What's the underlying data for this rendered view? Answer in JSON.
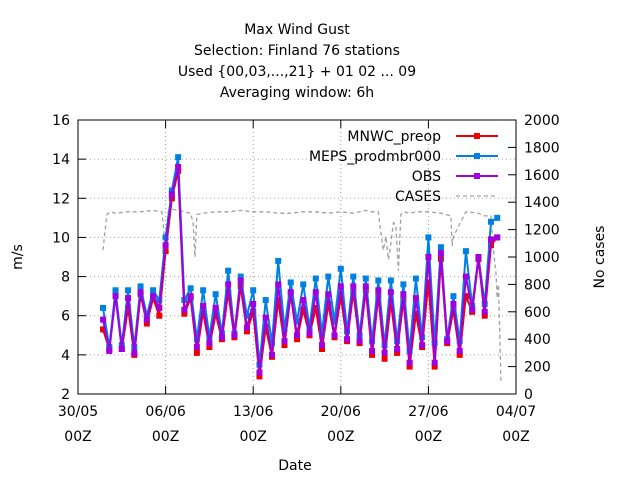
{
  "chart_data": {
    "type": "line",
    "title_lines": [
      "Max Wind Gust",
      "Selection: Finland     76 stations",
      "Used {00,03,...,21} + 01 02 ... 09",
      "Averaging window:  6h"
    ],
    "xlabel": "Date",
    "ylabel": "m/s",
    "y2label": "No cases",
    "xlim": [
      0,
      35
    ],
    "ylim": [
      2,
      16
    ],
    "y2lim": [
      0,
      2000
    ],
    "x_ticks": [
      {
        "x": 0,
        "date": "30/05",
        "hour": "00Z"
      },
      {
        "x": 7,
        "date": "06/06",
        "hour": "00Z"
      },
      {
        "x": 14,
        "date": "13/06",
        "hour": "00Z"
      },
      {
        "x": 21,
        "date": "20/06",
        "hour": "00Z"
      },
      {
        "x": 28,
        "date": "27/06",
        "hour": "00Z"
      },
      {
        "x": 35,
        "date": "04/07",
        "hour": "00Z"
      }
    ],
    "y_ticks": [
      2,
      4,
      6,
      8,
      10,
      12,
      14,
      16
    ],
    "y2_ticks": [
      0,
      200,
      400,
      600,
      800,
      1000,
      1200,
      1400,
      1600,
      1800,
      2000
    ],
    "grid": true,
    "legend_position": "top-right",
    "x_unit": "days since 30/05 00Z",
    "series": [
      {
        "name": "MNWC_preop",
        "color": "#ee0000",
        "marker": "square",
        "axis": "y",
        "x": [
          2.0,
          2.5,
          3.0,
          3.5,
          4.0,
          4.5,
          5.0,
          5.5,
          6.0,
          6.5,
          7.0,
          7.5,
          8.0,
          8.5,
          9.0,
          9.5,
          10.0,
          10.5,
          11.0,
          11.5,
          12.0,
          12.5,
          13.0,
          13.5,
          14.0,
          14.5,
          15.0,
          15.5,
          16.0,
          16.5,
          17.0,
          17.5,
          18.0,
          18.5,
          19.0,
          19.5,
          20.0,
          20.5,
          21.0,
          21.5,
          22.0,
          22.5,
          23.0,
          23.5,
          24.0,
          24.5,
          25.0,
          25.5,
          26.0,
          26.5,
          27.0,
          27.5,
          28.0,
          28.5,
          29.0,
          29.5,
          30.0,
          30.5,
          31.0,
          31.5,
          32.0,
          32.5,
          33.0,
          33.5
        ],
        "values": [
          5.3,
          4.3,
          7.2,
          4.3,
          6.4,
          4.0,
          7.1,
          5.6,
          6.9,
          6.0,
          9.3,
          12.0,
          13.4,
          6.1,
          6.9,
          4.1,
          6.2,
          4.4,
          6.1,
          4.8,
          7.2,
          4.9,
          7.5,
          5.2,
          6.2,
          2.9,
          5.4,
          3.9,
          6.8,
          4.5,
          7.1,
          4.8,
          6.3,
          5.0,
          6.4,
          4.3,
          6.6,
          4.9,
          7.0,
          4.7,
          7.2,
          4.6,
          7.3,
          4.0,
          7.0,
          3.8,
          6.7,
          4.1,
          6.8,
          3.4,
          6.1,
          4.4,
          7.7,
          3.4,
          8.9,
          4.6,
          6.3,
          4.0,
          7.0,
          6.2,
          8.9,
          6.0,
          9.6,
          10.0
        ]
      },
      {
        "name": "MEPS_prodmbr000",
        "color": "#0080e0",
        "marker": "square",
        "axis": "y",
        "x": [
          2.0,
          2.5,
          3.0,
          3.5,
          4.0,
          4.5,
          5.0,
          5.5,
          6.0,
          6.5,
          7.0,
          7.5,
          8.0,
          8.5,
          9.0,
          9.5,
          10.0,
          10.5,
          11.0,
          11.5,
          12.0,
          12.5,
          13.0,
          13.5,
          14.0,
          14.5,
          15.0,
          15.5,
          16.0,
          16.5,
          17.0,
          17.5,
          18.0,
          18.5,
          19.0,
          19.5,
          20.0,
          20.5,
          21.0,
          21.5,
          22.0,
          22.5,
          23.0,
          23.5,
          24.0,
          24.5,
          25.0,
          25.5,
          26.0,
          26.5,
          27.0,
          27.5,
          28.0,
          28.5,
          29.0,
          29.5,
          30.0,
          30.5,
          31.0,
          31.5,
          32.0,
          32.5,
          33.0,
          33.5
        ],
        "values": [
          6.4,
          4.4,
          7.3,
          4.5,
          7.3,
          4.4,
          7.5,
          6.0,
          7.3,
          6.8,
          10.0,
          12.4,
          14.1,
          6.8,
          7.4,
          4.8,
          7.3,
          4.9,
          7.1,
          5.1,
          8.3,
          5.1,
          8.0,
          6.0,
          7.3,
          3.5,
          6.8,
          4.6,
          8.8,
          5.3,
          7.7,
          5.7,
          7.6,
          5.4,
          7.9,
          5.1,
          8.0,
          5.7,
          8.4,
          5.2,
          8.0,
          5.0,
          7.9,
          4.7,
          7.8,
          4.5,
          7.8,
          4.7,
          7.6,
          4.2,
          7.9,
          4.9,
          10.0,
          4.6,
          9.5,
          4.8,
          7.0,
          4.7,
          9.3,
          6.5,
          9.0,
          6.6,
          10.8,
          11.0
        ]
      },
      {
        "name": "OBS",
        "color": "#a000e0",
        "marker": "square",
        "axis": "y",
        "x": [
          2.0,
          2.5,
          3.0,
          3.5,
          4.0,
          4.5,
          5.0,
          5.5,
          6.0,
          6.5,
          7.0,
          7.5,
          8.0,
          8.5,
          9.0,
          9.5,
          10.0,
          10.5,
          11.0,
          11.5,
          12.0,
          12.5,
          13.0,
          13.5,
          14.0,
          14.5,
          15.0,
          15.5,
          16.0,
          16.5,
          17.0,
          17.5,
          18.0,
          18.5,
          19.0,
          19.5,
          20.0,
          20.5,
          21.0,
          21.5,
          22.0,
          22.5,
          23.0,
          23.5,
          24.0,
          24.5,
          25.0,
          25.5,
          26.0,
          26.5,
          27.0,
          27.5,
          28.0,
          28.5,
          29.0,
          29.5,
          30.0,
          30.5,
          31.0,
          31.5,
          32.0,
          32.5,
          33.0,
          33.5
        ],
        "values": [
          5.8,
          4.2,
          7.0,
          4.3,
          6.9,
          4.1,
          7.2,
          5.8,
          7.0,
          6.4,
          9.6,
          12.2,
          13.6,
          6.3,
          7.0,
          4.4,
          6.5,
          4.6,
          6.4,
          4.9,
          7.6,
          5.0,
          7.8,
          5.4,
          6.6,
          3.1,
          5.9,
          4.0,
          7.6,
          4.7,
          7.2,
          5.0,
          6.8,
          5.1,
          7.2,
          4.5,
          7.1,
          5.0,
          7.5,
          4.8,
          7.5,
          4.7,
          7.5,
          4.2,
          7.3,
          4.1,
          7.2,
          4.3,
          7.1,
          3.6,
          6.9,
          4.5,
          9.0,
          3.6,
          9.2,
          4.7,
          6.6,
          4.2,
          8.0,
          6.3,
          9.0,
          6.2,
          9.9,
          10.0
        ]
      },
      {
        "name": "CASES",
        "color": "#a0a0a0",
        "marker": "none",
        "dash": true,
        "axis": "y2",
        "x": [
          2.0,
          2.3,
          2.6,
          3.0,
          4.0,
          5.0,
          6.0,
          6.7,
          6.8,
          6.9,
          7.0,
          7.2,
          7.5,
          8.0,
          8.5,
          9.0,
          9.2,
          9.35,
          9.5,
          10.0,
          11.0,
          12.0,
          13.0,
          14.0,
          15.0,
          16.0,
          17.0,
          18.0,
          19.0,
          20.0,
          21.0,
          22.0,
          23.0,
          23.5,
          24.0,
          24.2,
          24.4,
          24.6,
          24.8,
          25.0,
          25.2,
          25.4,
          25.6,
          25.8,
          26.0,
          26.5,
          27.0,
          28.0,
          29.0,
          29.8,
          29.9,
          30.0,
          31.0,
          32.0,
          32.5,
          33.0,
          33.2,
          33.4,
          33.5,
          33.6,
          33.8
        ],
        "values": [
          1050,
          1310,
          1330,
          1320,
          1330,
          1330,
          1340,
          1330,
          1250,
          1140,
          1100,
          1330,
          1350,
          1340,
          1330,
          1320,
          1250,
          1000,
          1310,
          1320,
          1330,
          1330,
          1340,
          1330,
          1330,
          1320,
          1320,
          1330,
          1330,
          1320,
          1330,
          1320,
          1340,
          1330,
          1330,
          1180,
          1050,
          1150,
          980,
          1100,
          1250,
          1230,
          900,
          1310,
          1330,
          1320,
          1330,
          1330,
          1320,
          1300,
          1080,
          1150,
          1330,
          1320,
          1300,
          1300,
          1050,
          880,
          700,
          800,
          80
        ]
      }
    ]
  }
}
